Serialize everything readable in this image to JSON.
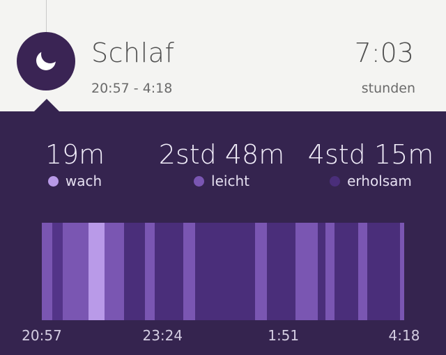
{
  "header": {
    "icon": "moon-icon",
    "title": "Schlaf",
    "time_range": "20:57 - 4:18",
    "duration": "7:03",
    "duration_unit": "stunden"
  },
  "stats": [
    {
      "value": "19m",
      "label": "wach",
      "color": "#b99ae8"
    },
    {
      "value": "2std 48m",
      "label": "leicht",
      "color": "#7a56b2"
    },
    {
      "value": "4std 15m",
      "label": "erholsam",
      "color": "#4a2e7a"
    }
  ],
  "chart_data": {
    "type": "bar",
    "x_ticks": [
      "20:57",
      "23:24",
      "1:51",
      "4:18"
    ],
    "x_tick_fractions": [
      0,
      0.3333,
      0.6667,
      1
    ],
    "stage_colors": {
      "wach": "#b99ae8",
      "leicht": "#7a56b2",
      "erholsam": "#4a2e7a",
      "gap": "#533488"
    },
    "segments": [
      {
        "stage": "leicht",
        "start": 0.0,
        "end": 0.029
      },
      {
        "stage": "gap",
        "start": 0.029,
        "end": 0.058
      },
      {
        "stage": "leicht",
        "start": 0.058,
        "end": 0.129
      },
      {
        "stage": "wach",
        "start": 0.129,
        "end": 0.173
      },
      {
        "stage": "leicht",
        "start": 0.173,
        "end": 0.227
      },
      {
        "stage": "erholsam",
        "start": 0.227,
        "end": 0.285
      },
      {
        "stage": "leicht",
        "start": 0.285,
        "end": 0.312
      },
      {
        "stage": "erholsam",
        "start": 0.312,
        "end": 0.39
      },
      {
        "stage": "leicht",
        "start": 0.39,
        "end": 0.423
      },
      {
        "stage": "erholsam",
        "start": 0.423,
        "end": 0.588
      },
      {
        "stage": "leicht",
        "start": 0.588,
        "end": 0.621
      },
      {
        "stage": "erholsam",
        "start": 0.621,
        "end": 0.7
      },
      {
        "stage": "leicht",
        "start": 0.7,
        "end": 0.762
      },
      {
        "stage": "erholsam",
        "start": 0.762,
        "end": 0.783
      },
      {
        "stage": "leicht",
        "start": 0.783,
        "end": 0.808
      },
      {
        "stage": "erholsam",
        "start": 0.808,
        "end": 0.873
      },
      {
        "stage": "leicht",
        "start": 0.873,
        "end": 0.898
      },
      {
        "stage": "erholsam",
        "start": 0.898,
        "end": 0.988
      },
      {
        "stage": "leicht",
        "start": 0.988,
        "end": 1.0
      }
    ]
  }
}
